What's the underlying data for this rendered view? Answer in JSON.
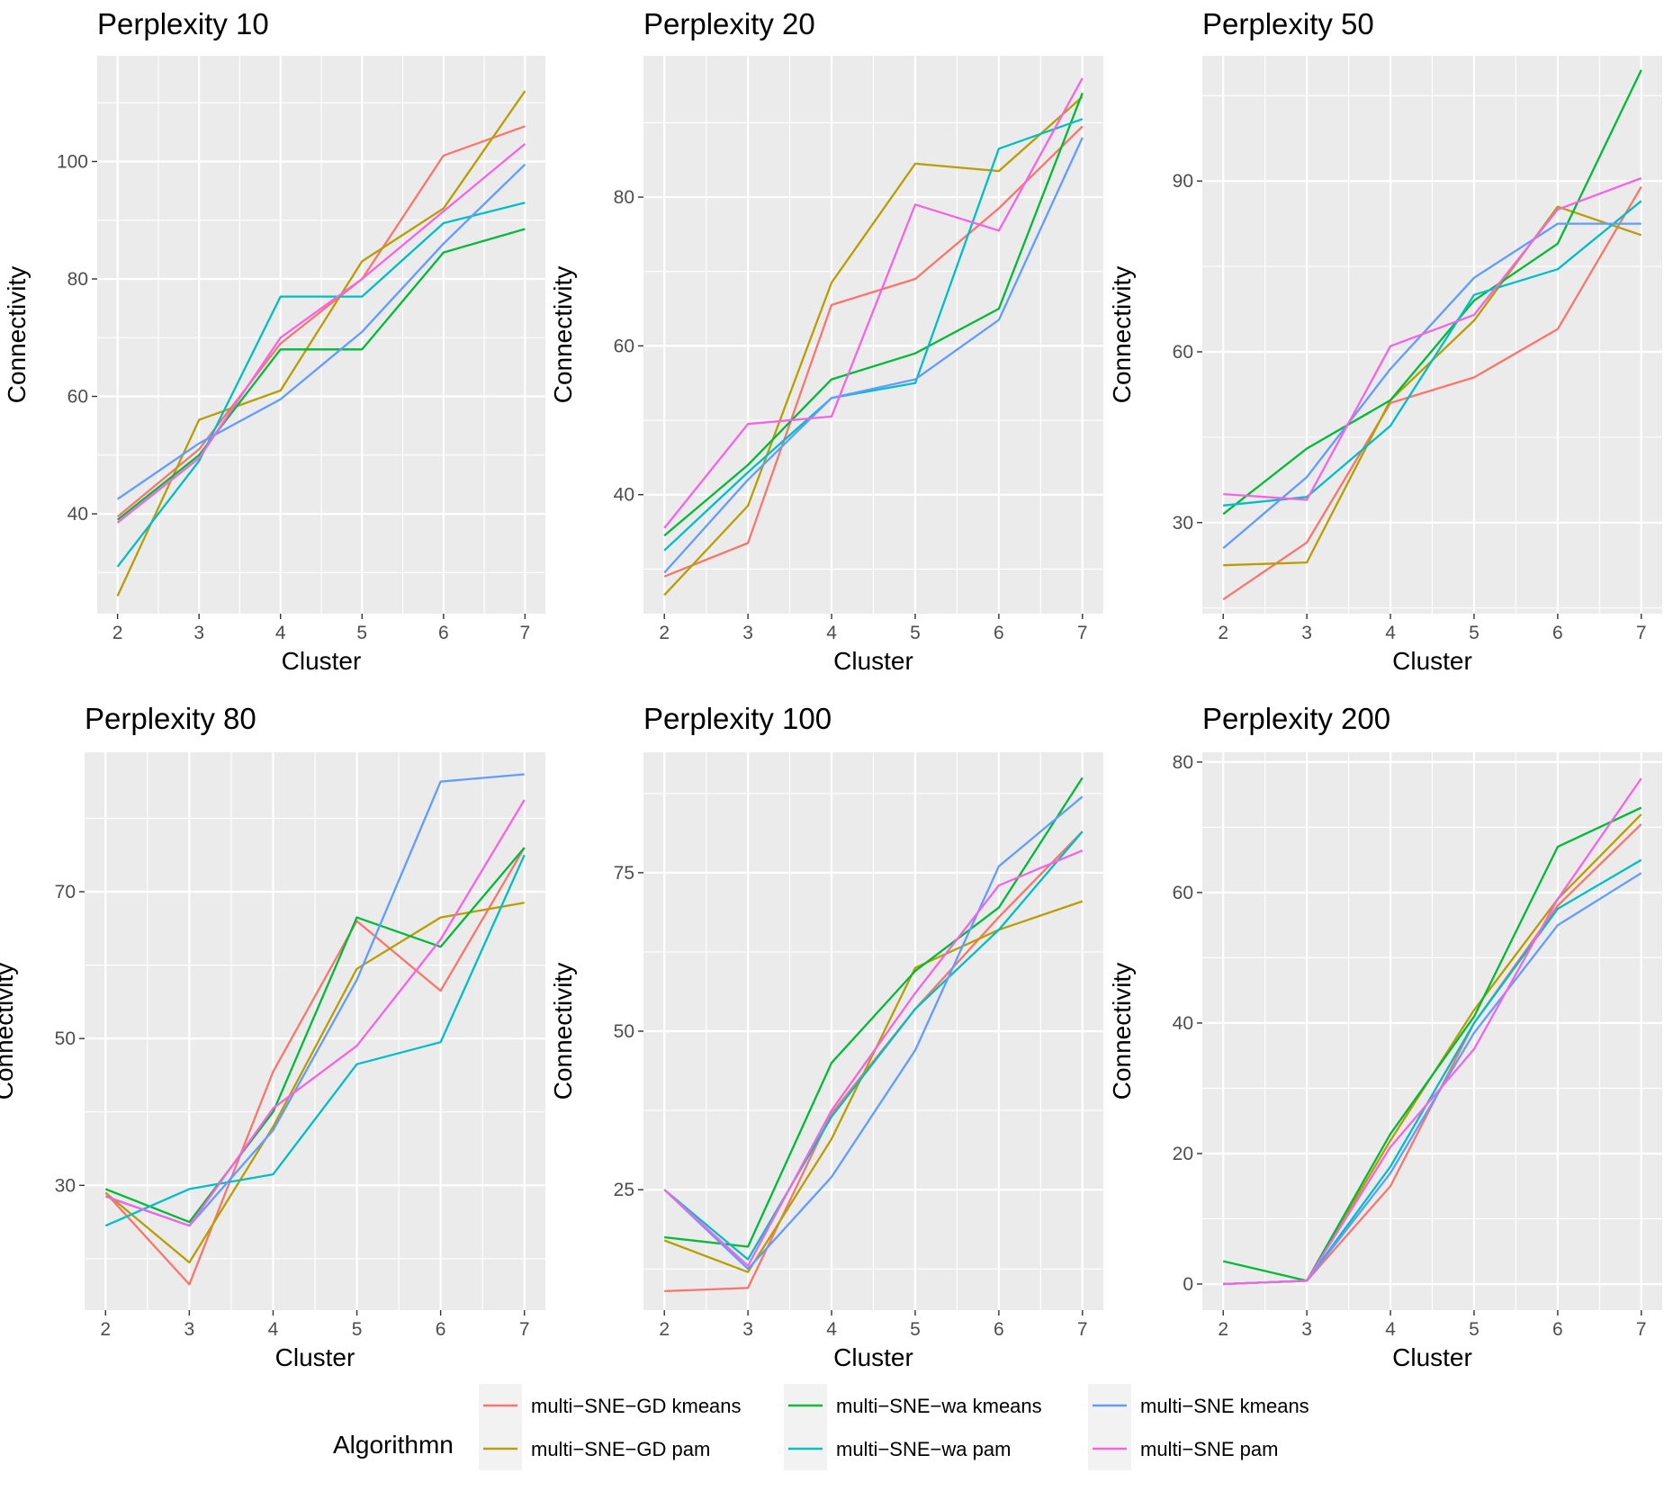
{
  "legend": {
    "title": "Algorithmn",
    "entries": [
      {
        "name": "multi−SNE−GD kmeans",
        "color": "#F8766D"
      },
      {
        "name": "multi−SNE−GD pam",
        "color": "#B79F00"
      },
      {
        "name": "multi−SNE−wa kmeans",
        "color": "#00BA38"
      },
      {
        "name": "multi−SNE−wa pam",
        "color": "#00BFC4"
      },
      {
        "name": "multi−SNE kmeans",
        "color": "#619CFF"
      },
      {
        "name": "multi−SNE pam",
        "color": "#F564E3"
      }
    ]
  },
  "chart_data": [
    {
      "type": "line",
      "title": "Perplexity 10",
      "xlabel": "Cluster",
      "ylabel": "Connectivity",
      "x": [
        2,
        3,
        4,
        5,
        6,
        7
      ],
      "ylim": [
        23,
        118
      ],
      "yticks": [
        40,
        60,
        80,
        100
      ],
      "series": [
        {
          "name": "multi−SNE−GD kmeans",
          "values": [
            39.5,
            51,
            69,
            80,
            101,
            106
          ]
        },
        {
          "name": "multi−SNE−GD pam",
          "values": [
            26,
            56,
            61,
            83,
            92,
            112
          ]
        },
        {
          "name": "multi−SNE−wa kmeans",
          "values": [
            39,
            50,
            68,
            68,
            84.5,
            88.5
          ]
        },
        {
          "name": "multi−SNE−wa pam",
          "values": [
            31,
            49,
            77,
            77,
            89.5,
            93
          ]
        },
        {
          "name": "multi−SNE kmeans",
          "values": [
            42.5,
            52,
            59.5,
            71,
            86,
            99.5
          ]
        },
        {
          "name": "multi−SNE pam",
          "values": [
            38.5,
            49.5,
            70,
            80,
            91.5,
            103
          ]
        }
      ]
    },
    {
      "type": "line",
      "title": "Perplexity 20",
      "xlabel": "Cluster",
      "ylabel": "Connectivity",
      "x": [
        2,
        3,
        4,
        5,
        6,
        7
      ],
      "ylim": [
        24,
        99
      ],
      "yticks": [
        40,
        60,
        80
      ],
      "series": [
        {
          "name": "multi−SNE−GD kmeans",
          "values": [
            29,
            33.5,
            65.5,
            69,
            78.5,
            89.5
          ]
        },
        {
          "name": "multi−SNE−GD pam",
          "values": [
            26.5,
            38.5,
            68.5,
            84.5,
            83.5,
            93.5
          ]
        },
        {
          "name": "multi−SNE−wa kmeans",
          "values": [
            34.5,
            44,
            55.5,
            59,
            65,
            94
          ]
        },
        {
          "name": "multi−SNE−wa pam",
          "values": [
            32.5,
            43,
            53,
            55,
            86.5,
            90.5
          ]
        },
        {
          "name": "multi−SNE kmeans",
          "values": [
            29.5,
            42,
            53,
            55.5,
            63.5,
            88
          ]
        },
        {
          "name": "multi−SNE pam",
          "values": [
            35.5,
            49.5,
            50.5,
            79,
            75.5,
            96
          ]
        }
      ]
    },
    {
      "type": "line",
      "title": "Perplexity 50",
      "xlabel": "Cluster",
      "ylabel": "Connectivity",
      "x": [
        2,
        3,
        4,
        5,
        6,
        7
      ],
      "ylim": [
        14,
        112
      ],
      "yticks": [
        30,
        60,
        90
      ],
      "series": [
        {
          "name": "multi−SNE−GD kmeans",
          "values": [
            16.5,
            26.5,
            51,
            55.5,
            64,
            89
          ]
        },
        {
          "name": "multi−SNE−GD pam",
          "values": [
            22.5,
            23,
            51.5,
            65.5,
            85.5,
            80.5
          ]
        },
        {
          "name": "multi−SNE−wa kmeans",
          "values": [
            31.5,
            43,
            51.5,
            69,
            79,
            109.5
          ]
        },
        {
          "name": "multi−SNE−wa pam",
          "values": [
            33,
            34.5,
            47,
            70,
            74.5,
            86.5
          ]
        },
        {
          "name": "multi−SNE kmeans",
          "values": [
            25.5,
            38,
            57,
            73,
            82.5,
            82.5
          ]
        },
        {
          "name": "multi−SNE pam",
          "values": [
            35,
            34,
            61,
            66.5,
            85,
            90.5
          ]
        }
      ]
    },
    {
      "type": "line",
      "title": "Perplexity 80",
      "xlabel": "Cluster",
      "ylabel": "Connectivity",
      "x": [
        2,
        3,
        4,
        5,
        6,
        7
      ],
      "ylim": [
        13,
        89
      ],
      "yticks": [
        30,
        50,
        70
      ],
      "series": [
        {
          "name": "multi−SNE−GD kmeans",
          "values": [
            29,
            16.5,
            45.5,
            66,
            56.5,
            76
          ]
        },
        {
          "name": "multi−SNE−GD pam",
          "values": [
            29,
            19.5,
            38,
            59.5,
            66.5,
            68.5
          ]
        },
        {
          "name": "multi−SNE−wa kmeans",
          "values": [
            29.5,
            25,
            40,
            66.5,
            62.5,
            76
          ]
        },
        {
          "name": "multi−SNE−wa pam",
          "values": [
            24.5,
            29.5,
            31.5,
            46.5,
            49.5,
            75
          ]
        },
        {
          "name": "multi−SNE kmeans",
          "values": [
            28.5,
            24.5,
            37.5,
            58,
            85,
            86
          ]
        },
        {
          "name": "multi−SNE pam",
          "values": [
            28.5,
            24.5,
            40.5,
            49,
            63.5,
            82.5
          ]
        }
      ]
    },
    {
      "type": "line",
      "title": "Perplexity 100",
      "xlabel": "Cluster",
      "ylabel": "Connectivity",
      "x": [
        2,
        3,
        4,
        5,
        6,
        7
      ],
      "ylim": [
        6,
        94
      ],
      "yticks": [
        25,
        50,
        75
      ],
      "series": [
        {
          "name": "multi−SNE−GD kmeans",
          "values": [
            9,
            9.5,
            37,
            53.5,
            68,
            81.5
          ]
        },
        {
          "name": "multi−SNE−GD pam",
          "values": [
            17,
            12,
            33,
            60,
            66,
            70.5
          ]
        },
        {
          "name": "multi−SNE−wa kmeans",
          "values": [
            17.5,
            16,
            45,
            59.5,
            69.5,
            90
          ]
        },
        {
          "name": "multi−SNE−wa pam",
          "values": [
            25,
            14,
            36.5,
            53.5,
            66,
            81.5
          ]
        },
        {
          "name": "multi−SNE kmeans",
          "values": [
            25,
            12.5,
            27,
            47,
            76,
            87
          ]
        },
        {
          "name": "multi−SNE pam",
          "values": [
            25,
            13,
            37.5,
            56,
            73,
            78.5
          ]
        }
      ]
    },
    {
      "type": "line",
      "title": "Perplexity 200",
      "xlabel": "Cluster",
      "ylabel": "Connectivity",
      "x": [
        2,
        3,
        4,
        5,
        6,
        7
      ],
      "ylim": [
        -4,
        81.5
      ],
      "yticks": [
        0,
        20,
        40,
        60,
        80
      ],
      "series": [
        {
          "name": "multi−SNE−GD kmeans",
          "values": [
            0,
            0.5,
            15,
            40,
            58,
            70.5
          ]
        },
        {
          "name": "multi−SNE−GD pam",
          "values": [
            0,
            0.5,
            22,
            42,
            59,
            72
          ]
        },
        {
          "name": "multi−SNE−wa kmeans",
          "values": [
            3.5,
            0.5,
            23,
            41,
            67,
            73
          ]
        },
        {
          "name": "multi−SNE−wa pam",
          "values": [
            0,
            0.5,
            18,
            40,
            57.5,
            65
          ]
        },
        {
          "name": "multi−SNE kmeans",
          "values": [
            0,
            0.5,
            17,
            38.5,
            55,
            63
          ]
        },
        {
          "name": "multi−SNE pam",
          "values": [
            0,
            0.5,
            21,
            36,
            59,
            77.5
          ]
        }
      ]
    }
  ]
}
